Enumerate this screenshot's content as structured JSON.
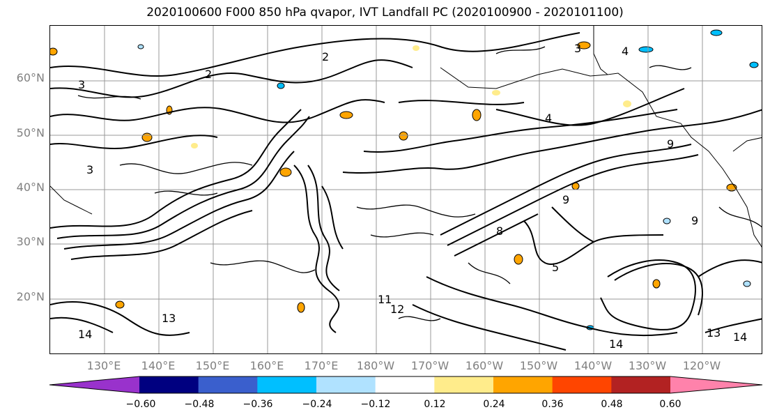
{
  "title": "2020100600 F000 850 hPa qvapor, IVT Landfall PC (2020100900 - 2020101100)",
  "y_axis_labels": [
    "60°N",
    "50°N",
    "40°N",
    "30°N",
    "20°N"
  ],
  "x_axis_labels": [
    "130°E",
    "140°E",
    "150°E",
    "160°E",
    "170°E",
    "180°W",
    "170°W",
    "160°W",
    "150°W",
    "140°W",
    "130°W",
    "120°W"
  ],
  "contour_labels": [
    "2",
    "2",
    "3",
    "3",
    "3",
    "4",
    "4",
    "5",
    "8",
    "9",
    "9",
    "9",
    "11",
    "12",
    "13",
    "13",
    "14",
    "14",
    "14"
  ],
  "colorbar": {
    "colors": [
      "#9932cc",
      "#000080",
      "#3a5fcd",
      "#00bfff",
      "#b0e2ff",
      "#ffffff",
      "#ffec8b",
      "#ffa500",
      "#ff4500",
      "#b22222",
      "#ff82ab"
    ],
    "tick_labels": [
      "−0.60",
      "−0.48",
      "−0.36",
      "−0.24",
      "−0.12",
      "0.12",
      "0.24",
      "0.36",
      "0.48",
      "0.60"
    ]
  }
}
